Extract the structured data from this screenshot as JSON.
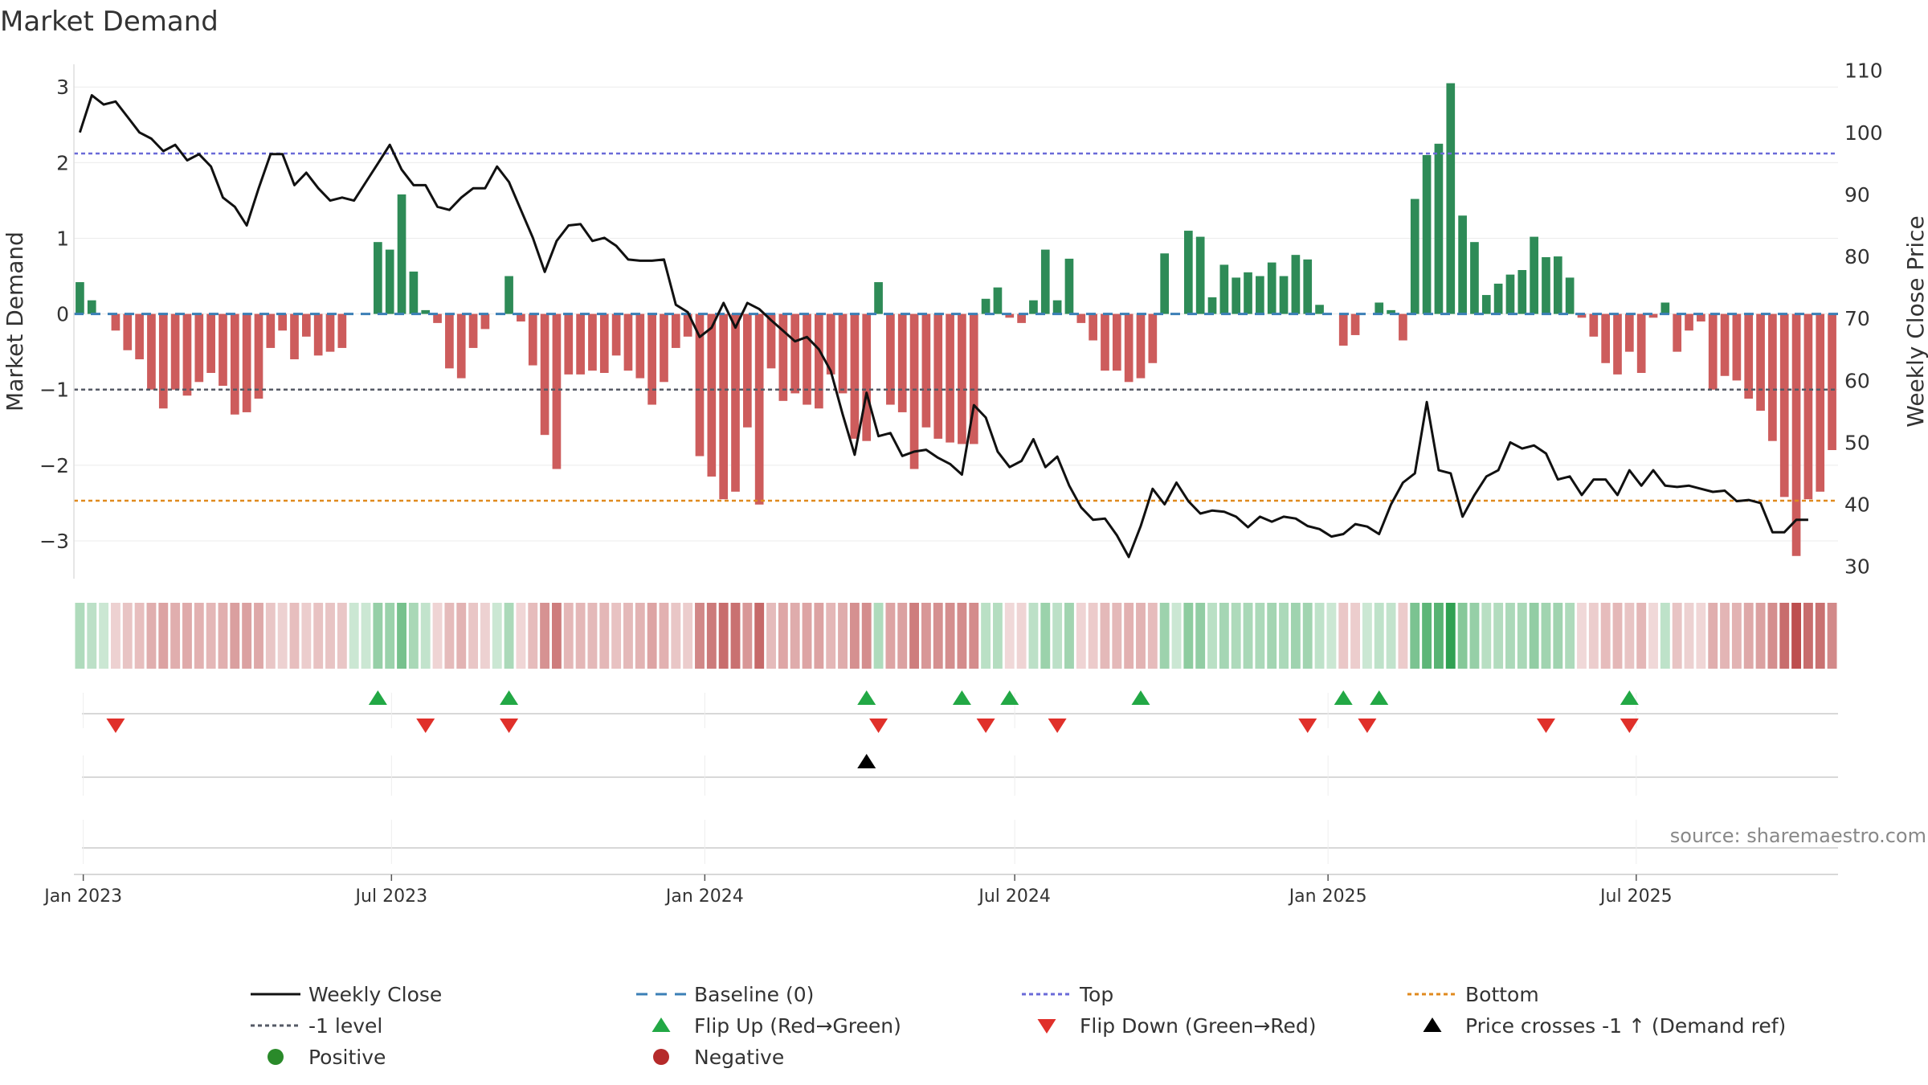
{
  "chart_data": {
    "type": "bar",
    "title": "Market Demand",
    "ylabel": "Market Demand",
    "y2label": "Weekly Close Price",
    "source": "source: sharemaestro.com",
    "ylim": [
      -3.5,
      3.3
    ],
    "y_ticks": [
      3,
      2,
      1,
      0,
      -1,
      -2,
      -3
    ],
    "y_tick_labels": [
      "3",
      "2",
      "1",
      "0",
      "−1",
      "−2",
      "−3"
    ],
    "y2lim": [
      28,
      111
    ],
    "y2_ticks": [
      110,
      100,
      90,
      80,
      70,
      60,
      50,
      40,
      30
    ],
    "top_level": 2.12,
    "minus_one_level": -1,
    "bottom_level": -2.47,
    "start_date": "2022-12-30",
    "x_ticks": [
      {
        "label": "Jan 2023",
        "date": "2023-01-01"
      },
      {
        "label": "Jul 2023",
        "date": "2023-07-01"
      },
      {
        "label": "Jan 2024",
        "date": "2024-01-01"
      },
      {
        "label": "Jul 2024",
        "date": "2024-07-01"
      },
      {
        "label": "Jan 2025",
        "date": "2025-01-01"
      },
      {
        "label": "Jul 2025",
        "date": "2025-07-01"
      }
    ],
    "demand": [
      0.42,
      0.18,
      0,
      -0.22,
      -0.48,
      -0.6,
      -1.0,
      -1.25,
      -1.0,
      -1.08,
      -0.9,
      -0.78,
      -0.95,
      -1.33,
      -1.3,
      -1.12,
      -0.45,
      -0.22,
      -0.6,
      -0.3,
      -0.55,
      -0.5,
      -0.45,
      0,
      0,
      0.95,
      0.85,
      1.58,
      0.56,
      0.05,
      -0.12,
      -0.72,
      -0.85,
      -0.45,
      -0.2,
      0,
      0.5,
      -0.1,
      -0.68,
      -1.6,
      -2.05,
      -0.8,
      -0.8,
      -0.75,
      -0.78,
      -0.55,
      -0.75,
      -0.85,
      -1.2,
      -0.9,
      -0.45,
      -0.3,
      -1.88,
      -2.15,
      -2.45,
      -2.35,
      -1.5,
      -2.52,
      -0.72,
      -1.15,
      -1.05,
      -1.2,
      -1.25,
      -0.8,
      -1.05,
      -1.65,
      -1.68,
      0.42,
      -1.2,
      -1.3,
      -2.05,
      -1.5,
      -1.65,
      -1.7,
      -1.72,
      -1.72,
      0.2,
      0.35,
      -0.05,
      -0.12,
      0.18,
      0.85,
      0.18,
      0.73,
      -0.12,
      -0.35,
      -0.75,
      -0.75,
      -0.9,
      -0.85,
      -0.65,
      0.8,
      0,
      1.1,
      1.02,
      0.22,
      0.65,
      0.48,
      0.55,
      0.5,
      0.68,
      0.5,
      0.78,
      0.72,
      0.12,
      0,
      -0.42,
      -0.28,
      0,
      0.15,
      0.05,
      -0.35,
      1.52,
      2.1,
      2.25,
      3.05,
      1.3,
      0.95,
      0.25,
      0.4,
      0.52,
      0.58,
      1.02,
      0.75,
      0.76,
      0.48,
      -0.05,
      -0.3,
      -0.65,
      -0.8,
      -0.5,
      -0.78,
      -0.05,
      0.15,
      -0.5,
      -0.22,
      -0.1,
      -1.0,
      -0.82,
      -0.88,
      -1.12,
      -1.28,
      -1.68,
      -2.42,
      -3.2,
      -2.45,
      -2.35,
      -1.8
    ],
    "price": [
      100,
      106,
      104.5,
      105,
      102.5,
      100,
      99,
      97,
      98,
      95.5,
      96.5,
      94.5,
      89.5,
      88,
      85,
      91,
      96.5,
      96.5,
      91.5,
      93.5,
      91,
      89,
      89.5,
      89,
      92,
      95,
      98,
      94,
      91.5,
      91.5,
      88,
      87.5,
      89.5,
      91,
      91,
      94.5,
      92,
      87.5,
      83,
      77.5,
      82.5,
      85,
      85.2,
      82.5,
      83,
      81.7,
      79.5,
      79.3,
      79.3,
      79.5,
      72.2,
      71,
      67,
      68.5,
      72.5,
      68.5,
      72.5,
      71.5,
      69.7,
      68,
      66.3,
      67,
      65,
      61.5,
      54.5,
      48,
      58,
      51,
      51.5,
      47.8,
      48.5,
      48.8,
      47.5,
      46.5,
      44.8,
      56,
      54,
      48.5,
      46,
      47,
      50.5,
      46,
      47.7,
      43,
      39.5,
      37.5,
      37.7,
      35,
      31.5,
      36.5,
      42.5,
      40,
      43.5,
      40.5,
      38.5,
      39,
      38.8,
      38,
      36.3,
      38,
      37.2,
      38,
      37.7,
      36.5,
      36,
      34.8,
      35.2,
      36.8,
      36.4,
      35.2,
      40,
      43.5,
      45,
      56.5,
      45.5,
      45,
      38,
      41.5,
      44.5,
      45.5,
      50,
      49,
      49.5,
      48.2,
      44,
      44.5,
      41.5,
      44,
      44,
      41.5,
      45.5,
      43,
      45.5,
      43,
      42.8,
      43,
      42.5,
      42,
      42.2,
      40.5,
      40.7,
      40.2,
      35.5,
      35.5,
      37.5,
      37.5
    ],
    "flip_up_weeks": [
      25,
      36,
      66,
      74,
      78,
      89,
      106,
      109,
      130
    ],
    "flip_down_weeks": [
      3,
      29,
      36,
      67,
      76,
      82,
      103,
      108,
      123,
      130
    ],
    "cross_up_weeks": [
      66
    ],
    "legend": [
      {
        "label": "Weekly Close",
        "marker": "line",
        "color": "#111111"
      },
      {
        "label": "Baseline (0)",
        "marker": "dash",
        "color": "#3b7fb6"
      },
      {
        "label": "Top",
        "marker": "dot",
        "color": "#6a6ad8"
      },
      {
        "label": "Bottom",
        "marker": "dot",
        "color": "#e08a1e"
      },
      {
        "label": "-1 level",
        "marker": "dot",
        "color": "#555a66"
      },
      {
        "label": "Flip Up (Red→Green)",
        "marker": "triangle-up",
        "color": "#22a845"
      },
      {
        "label": "Flip Down (Green→Red)",
        "marker": "triangle-down",
        "color": "#e0302a"
      },
      {
        "label": "Price crosses -1 ↑ (Demand ref)",
        "marker": "triangle-up",
        "color": "#000000"
      },
      {
        "label": "Positive",
        "marker": "circle",
        "color": "#2a8a2a"
      },
      {
        "label": "Negative",
        "marker": "circle",
        "color": "#b52a2a"
      }
    ]
  },
  "colors": {
    "positive_bar": "#2e8b57",
    "negative_bar": "#cd5c5c",
    "price_line": "#111111",
    "top_line": "#6a6ad8",
    "bottom_line": "#e08a1e",
    "minus_one_line": "#555a66",
    "baseline": "#3b7fb6"
  }
}
